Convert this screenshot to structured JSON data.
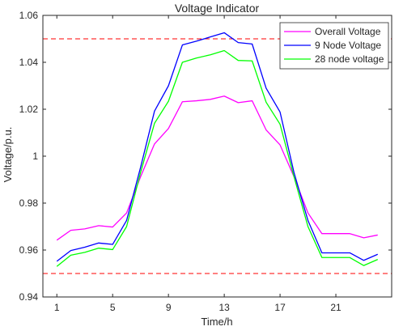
{
  "chart_data": {
    "type": "line",
    "title": "Voltage Indicator",
    "xlabel": "Time/h",
    "ylabel": "Voltage/p.u.",
    "xlim": [
      0,
      25
    ],
    "ylim": [
      0.94,
      1.06
    ],
    "xticks": [
      1,
      5,
      9,
      13,
      17,
      21
    ],
    "yticks": [
      0.94,
      0.96,
      0.98,
      1,
      1.02,
      1.04,
      1.06
    ],
    "ytick_labels": [
      "0.94",
      "0.96",
      "0.98",
      "1",
      "1.02",
      "1.04",
      "1.06"
    ],
    "x": [
      1,
      2,
      3,
      4,
      5,
      6,
      7,
      8,
      9,
      10,
      11,
      12,
      13,
      14,
      15,
      16,
      17,
      18,
      19,
      20,
      21,
      22,
      23,
      24
    ],
    "series": [
      {
        "name": "Overall Voltage",
        "color": "#ff00ff",
        "values": [
          0.9642,
          0.9684,
          0.969,
          0.9704,
          0.9698,
          0.9758,
          0.9912,
          1.0052,
          1.0118,
          1.0232,
          1.0236,
          1.0242,
          1.0256,
          1.0228,
          1.0236,
          1.0112,
          1.0048,
          0.9912,
          0.9758,
          0.967,
          0.967,
          0.967,
          0.9652,
          0.9664
        ]
      },
      {
        "name": "9 Node Voltage",
        "color": "#0000ff",
        "values": [
          0.9552,
          0.9598,
          0.9612,
          0.963,
          0.9624,
          0.9726,
          0.9952,
          1.0192,
          1.03,
          1.0474,
          1.049,
          1.0508,
          1.0526,
          1.0484,
          1.0478,
          1.029,
          1.0188,
          0.993,
          0.9726,
          0.9588,
          0.9588,
          0.9588,
          0.9556,
          0.9582
        ]
      },
      {
        "name": "28 node voltage",
        "color": "#00ff00",
        "values": [
          0.953,
          0.9578,
          0.959,
          0.9608,
          0.9602,
          0.97,
          0.993,
          1.014,
          1.0234,
          1.04,
          1.0418,
          1.0432,
          1.045,
          1.0408,
          1.0406,
          1.023,
          1.0136,
          0.9912,
          0.97,
          0.9568,
          0.9568,
          0.9568,
          0.9534,
          0.956
        ]
      }
    ],
    "reference_lines": [
      {
        "y": 1.05,
        "color": "#ff0000",
        "style": "dashed"
      },
      {
        "y": 0.95,
        "color": "#ff0000",
        "style": "dashed"
      }
    ],
    "grid": false,
    "legend_position": "top-right"
  }
}
